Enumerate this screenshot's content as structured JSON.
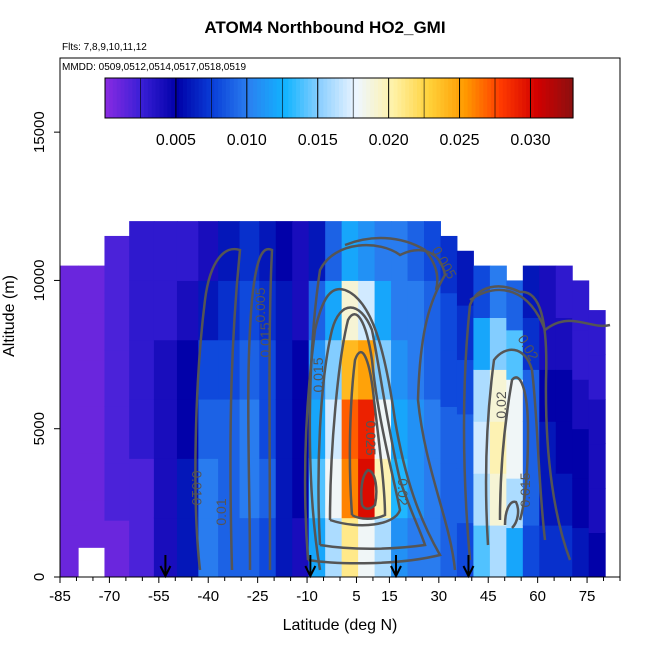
{
  "chart_data": {
    "type": "heatmap",
    "title": "ATOM4 Northbound HO2_GMI",
    "flights_label": "Flts: 7,8,9,10,11,12",
    "dates_label": "MMDD: 0509,0512,0514,0517,0518,0519",
    "xlabel": "Latitude (deg N)",
    "ylabel": "Altitude (m)",
    "xlim": [
      -85,
      85
    ],
    "ylim": [
      0,
      17500
    ],
    "x_ticks": [
      -85,
      -70,
      -55,
      -40,
      -25,
      -10,
      5,
      15,
      30,
      45,
      60,
      75
    ],
    "x_tick_labels": [
      "-85",
      "-70",
      "-55",
      "-40",
      "-25",
      "-10",
      "5",
      "15",
      "30",
      "45",
      "60",
      "75"
    ],
    "y_ticks": [
      0,
      5000,
      10000,
      15000
    ],
    "y_tick_labels": [
      "0",
      "5000",
      "10000",
      "15000"
    ],
    "colorbar": {
      "range": [
        0.0,
        0.033
      ],
      "ticks": [
        0.005,
        0.01,
        0.015,
        0.02,
        0.025,
        0.03
      ],
      "tick_labels": [
        "0.005",
        "0.010",
        "0.015",
        "0.020",
        "0.025",
        "0.030"
      ],
      "colors": [
        "#8a2be2",
        "#3a1fd6",
        "#0000a8",
        "#0a3fd8",
        "#2b80f0",
        "#10b4ff",
        "#8fd0ff",
        "#eef6ff",
        "#fff2a8",
        "#ffd23a",
        "#ff9a00",
        "#ff3a00",
        "#d20000",
        "#8b1010"
      ]
    },
    "contour_labels": [
      "0.005",
      "0.005",
      "0.010",
      "0.01",
      "0.015",
      "0.015",
      "0.02",
      "0.025",
      "0.02",
      "0.02",
      "0.015"
    ],
    "arrow_latitudes": [
      -53,
      -9,
      17,
      39
    ],
    "curtain": [
      {
        "lat": -84,
        "top": 10500,
        "bottom": 0,
        "vals": [
          0.001,
          0.001,
          0.001,
          0.001,
          0.001,
          0.001
        ]
      },
      {
        "lat": -75,
        "top": 10500,
        "bottom": 1000,
        "vals": [
          0.001,
          0.001,
          0.001,
          0.001,
          0.001,
          0.001
        ]
      },
      {
        "lat": -68,
        "top": 11500,
        "bottom": 0,
        "vals": [
          0.001,
          0.002,
          0.002,
          0.002,
          0.002,
          0.002
        ]
      },
      {
        "lat": -60,
        "top": 12000,
        "bottom": 0,
        "vals": [
          0.002,
          0.002,
          0.003,
          0.003,
          0.003,
          0.003
        ]
      },
      {
        "lat": -53,
        "top": 12000,
        "bottom": 0,
        "vals": [
          0.004,
          0.004,
          0.004,
          0.004,
          0.003,
          0.003
        ]
      },
      {
        "lat": -46,
        "top": 12000,
        "bottom": 0,
        "vals": [
          0.006,
          0.006,
          0.005,
          0.005,
          0.004,
          0.003
        ]
      },
      {
        "lat": -40,
        "top": 12000,
        "bottom": 0,
        "vals": [
          0.01,
          0.01,
          0.009,
          0.008,
          0.006,
          0.004
        ]
      },
      {
        "lat": -34,
        "top": 12000,
        "bottom": 0,
        "vals": [
          0.009,
          0.009,
          0.009,
          0.008,
          0.007,
          0.006
        ]
      },
      {
        "lat": -27,
        "top": 12000,
        "bottom": 0,
        "vals": [
          0.009,
          0.01,
          0.01,
          0.009,
          0.008,
          0.007
        ]
      },
      {
        "lat": -22,
        "top": 12000,
        "bottom": 0,
        "vals": [
          0.008,
          0.009,
          0.008,
          0.008,
          0.007,
          0.006
        ]
      },
      {
        "lat": -17,
        "top": 12000,
        "bottom": 0,
        "vals": [
          0.006,
          0.006,
          0.006,
          0.006,
          0.006,
          0.005
        ]
      },
      {
        "lat": -12,
        "top": 12000,
        "bottom": 0,
        "vals": [
          0.004,
          0.005,
          0.005,
          0.005,
          0.004,
          0.004
        ]
      },
      {
        "lat": -7,
        "top": 12000,
        "bottom": 0,
        "vals": [
          0.012,
          0.014,
          0.012,
          0.011,
          0.009,
          0.006
        ]
      },
      {
        "lat": -2,
        "top": 12000,
        "bottom": 0,
        "vals": [
          0.016,
          0.018,
          0.017,
          0.015,
          0.012,
          0.009
        ]
      },
      {
        "lat": 3,
        "top": 12000,
        "bottom": 0,
        "vals": [
          0.021,
          0.026,
          0.027,
          0.024,
          0.019,
          0.012
        ]
      },
      {
        "lat": 8,
        "top": 12000,
        "bottom": 0,
        "vals": [
          0.018,
          0.03,
          0.029,
          0.025,
          0.017,
          0.011
        ]
      },
      {
        "lat": 13,
        "top": 12000,
        "bottom": 0,
        "vals": [
          0.016,
          0.02,
          0.018,
          0.015,
          0.012,
          0.01
        ]
      },
      {
        "lat": 18,
        "top": 12000,
        "bottom": 0,
        "vals": [
          0.011,
          0.013,
          0.012,
          0.011,
          0.01,
          0.01
        ]
      },
      {
        "lat": 23,
        "top": 12000,
        "bottom": 0,
        "vals": [
          0.01,
          0.011,
          0.011,
          0.01,
          0.01,
          0.009
        ]
      },
      {
        "lat": 28,
        "top": 12000,
        "bottom": 0,
        "vals": [
          0.01,
          0.01,
          0.01,
          0.009,
          0.009,
          0.008
        ]
      },
      {
        "lat": 33,
        "top": 11500,
        "bottom": 0,
        "vals": [
          0.009,
          0.009,
          0.009,
          0.008,
          0.008,
          0.007
        ]
      },
      {
        "lat": 38,
        "top": 11000,
        "bottom": 0,
        "vals": [
          0.008,
          0.009,
          0.009,
          0.008,
          0.007,
          0.006
        ]
      },
      {
        "lat": 43,
        "top": 10500,
        "bottom": 0,
        "vals": [
          0.014,
          0.016,
          0.017,
          0.016,
          0.012,
          0.008
        ]
      },
      {
        "lat": 48,
        "top": 10500,
        "bottom": 0,
        "vals": [
          0.016,
          0.019,
          0.02,
          0.019,
          0.015,
          0.01
        ]
      },
      {
        "lat": 53,
        "top": 10000,
        "bottom": 0,
        "vals": [
          0.012,
          0.016,
          0.018,
          0.018,
          0.014,
          0.009
        ]
      },
      {
        "lat": 58,
        "top": 10500,
        "bottom": 0,
        "vals": [
          0.008,
          0.009,
          0.009,
          0.009,
          0.007,
          0.006
        ]
      },
      {
        "lat": 63,
        "top": 10500,
        "bottom": 0,
        "vals": [
          0.007,
          0.006,
          0.006,
          0.005,
          0.004,
          0.004
        ]
      },
      {
        "lat": 68,
        "top": 10500,
        "bottom": 0,
        "vals": [
          0.007,
          0.006,
          0.005,
          0.005,
          0.004,
          0.003
        ]
      },
      {
        "lat": 73,
        "top": 10000,
        "bottom": 0,
        "vals": [
          0.006,
          0.005,
          0.005,
          0.004,
          0.003,
          0.003
        ]
      },
      {
        "lat": 78,
        "top": 9000,
        "bottom": 0,
        "vals": [
          0.005,
          0.004,
          0.004,
          0.004,
          0.003,
          0.003
        ]
      }
    ]
  }
}
